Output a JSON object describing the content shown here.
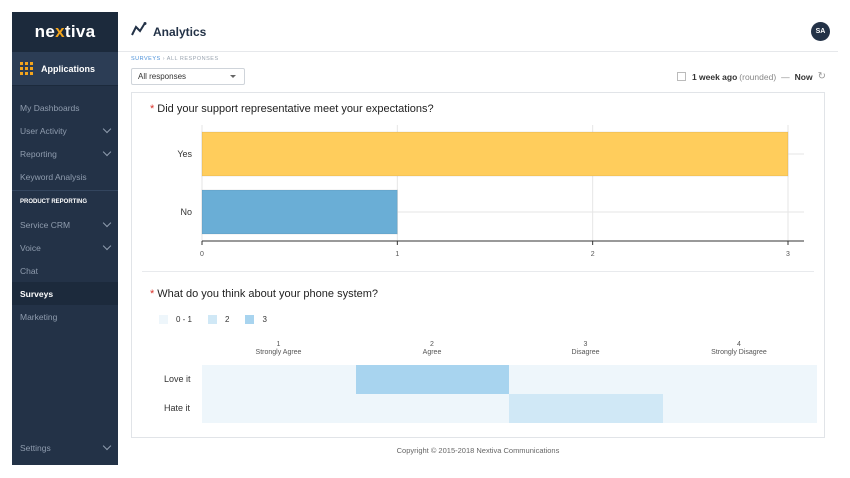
{
  "app": {
    "logo_pre": "ne",
    "logo_dot": "x",
    "logo_post": "tiva",
    "applications_label": "Applications",
    "header_title": "Analytics",
    "avatar_initials": "SA"
  },
  "sidebar": {
    "items": [
      {
        "label": "My Dashboards",
        "chevron": false,
        "active": false,
        "section": false
      },
      {
        "label": "User Activity",
        "chevron": true,
        "active": false,
        "section": false
      },
      {
        "label": "Reporting",
        "chevron": true,
        "active": false,
        "section": false
      },
      {
        "label": "Keyword Analysis",
        "chevron": false,
        "active": false,
        "section": false
      },
      {
        "label": "PRODUCT REPORTING",
        "chevron": false,
        "active": false,
        "section": true
      },
      {
        "label": "Service CRM",
        "chevron": true,
        "active": false,
        "section": false
      },
      {
        "label": "Voice",
        "chevron": true,
        "active": false,
        "section": false
      },
      {
        "label": "Chat",
        "chevron": false,
        "active": false,
        "section": false
      },
      {
        "label": "Surveys",
        "chevron": false,
        "active": true,
        "section": false
      },
      {
        "label": "Marketing",
        "chevron": false,
        "active": false,
        "section": false
      }
    ],
    "settings_label": "Settings"
  },
  "breadcrumb": {
    "link": "SURVEYS",
    "separator": "›",
    "current": "ALL RESPONSES"
  },
  "filter": {
    "selected": "All responses"
  },
  "time_range": {
    "value": "1 week ago",
    "qualifier": "(rounded)",
    "dash": "—",
    "end": "Now"
  },
  "questions": {
    "q1": "Did your support representative meet your expectations?",
    "q2": "What do you think about your phone system?"
  },
  "chart_data": [
    {
      "type": "bar",
      "orientation": "horizontal",
      "categories": [
        "Yes",
        "No"
      ],
      "values": [
        3,
        1
      ],
      "colors": [
        "#ffcd5c",
        "#6aaed6"
      ],
      "xlim": [
        0,
        3
      ],
      "xticks": [
        0,
        1,
        2,
        3
      ],
      "grid": true
    },
    {
      "type": "heatmap",
      "columns": [
        {
          "num": "1",
          "label": "Strongly Agree"
        },
        {
          "num": "2",
          "label": "Agree"
        },
        {
          "num": "3",
          "label": "Disagree"
        },
        {
          "num": "4",
          "label": "Strongly Disagree"
        }
      ],
      "rows": [
        "Love it",
        "Hate it"
      ],
      "values": [
        [
          0,
          3,
          0,
          0
        ],
        [
          0,
          0,
          2,
          0
        ]
      ],
      "legend": [
        {
          "label": "0 - 1",
          "color": "#eef6fb"
        },
        {
          "label": "2",
          "color": "#d0e8f6"
        },
        {
          "label": "3",
          "color": "#a8d4ef"
        }
      ]
    }
  ],
  "footer": "Copyright © 2015-2018 Nextiva Communications"
}
